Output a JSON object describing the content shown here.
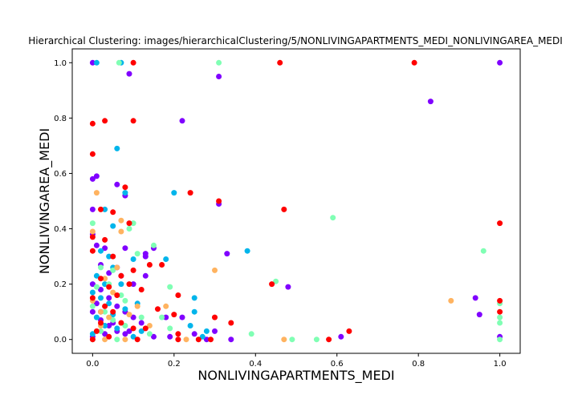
{
  "chart_data": {
    "type": "scatter",
    "title": "Hierarchical Clustering: images/hierarchicalClustering/5/NONLIVINGAPARTMENTS_MEDI_NONLIVINGAREA_MEDI",
    "xlabel": "NONLIVINGAPARTMENTS_MEDI",
    "ylabel": "NONLIVINGAREA_MEDI",
    "xlim": [
      -0.05,
      1.05
    ],
    "ylim": [
      -0.05,
      1.05
    ],
    "xticks": [
      "0.0",
      "0.2",
      "0.4",
      "0.6",
      "0.8",
      "1.0"
    ],
    "yticks": [
      "0.0",
      "0.2",
      "0.4",
      "0.6",
      "0.8",
      "1.0"
    ],
    "grid": false,
    "legend": "none",
    "cluster_colors": [
      "#8000ff",
      "#00b5eb",
      "#80ffb4",
      "#ffb360",
      "#ff0000"
    ],
    "series": [
      {
        "color": "#8000ff",
        "points": [
          [
            0.0,
            1.0
          ],
          [
            0.09,
            0.96
          ],
          [
            0.31,
            0.95
          ],
          [
            0.83,
            0.86
          ],
          [
            0.22,
            0.79
          ],
          [
            0.0,
            0.58
          ],
          [
            0.01,
            0.59
          ],
          [
            0.06,
            0.56
          ],
          [
            0.08,
            0.52
          ],
          [
            0.0,
            0.47
          ],
          [
            0.31,
            0.49
          ],
          [
            0.33,
            0.31
          ],
          [
            0.0,
            0.38
          ],
          [
            0.01,
            0.34
          ],
          [
            0.03,
            0.33
          ],
          [
            0.08,
            0.33
          ],
          [
            0.13,
            0.31
          ],
          [
            0.15,
            0.33
          ],
          [
            0.13,
            0.3
          ],
          [
            0.02,
            0.27
          ],
          [
            0.04,
            0.24
          ],
          [
            0.07,
            0.23
          ],
          [
            0.1,
            0.2
          ],
          [
            0.13,
            0.23
          ],
          [
            0.06,
            0.26
          ],
          [
            0.0,
            0.2
          ],
          [
            0.02,
            0.18
          ],
          [
            0.04,
            0.15
          ],
          [
            0.06,
            0.12
          ],
          [
            0.08,
            0.1
          ],
          [
            0.1,
            0.08
          ],
          [
            0.12,
            0.06
          ],
          [
            0.02,
            0.07
          ],
          [
            0.04,
            0.05
          ],
          [
            0.06,
            0.03
          ],
          [
            0.08,
            0.02
          ],
          [
            0.0,
            0.1
          ],
          [
            0.01,
            0.13
          ],
          [
            0.03,
            0.02
          ],
          [
            0.05,
            0.06
          ],
          [
            0.18,
            0.08
          ],
          [
            0.22,
            0.08
          ],
          [
            0.25,
            0.02
          ],
          [
            0.28,
            0.0
          ],
          [
            0.3,
            0.03
          ],
          [
            0.34,
            0.0
          ],
          [
            0.48,
            0.19
          ],
          [
            0.94,
            0.15
          ],
          [
            0.95,
            0.09
          ],
          [
            1.0,
            1.0
          ],
          [
            1.0,
            0.01
          ],
          [
            0.61,
            0.01
          ],
          [
            0.19,
            0.01
          ],
          [
            0.15,
            0.01
          ],
          [
            0.09,
            0.03
          ],
          [
            0.0,
            0.01
          ],
          [
            0.02,
            0.1
          ]
        ]
      },
      {
        "color": "#00b5eb",
        "points": [
          [
            0.01,
            1.0
          ],
          [
            0.07,
            1.0
          ],
          [
            0.06,
            0.69
          ],
          [
            0.2,
            0.53
          ],
          [
            0.08,
            0.53
          ],
          [
            0.03,
            0.47
          ],
          [
            0.05,
            0.41
          ],
          [
            0.02,
            0.32
          ],
          [
            0.04,
            0.3
          ],
          [
            0.1,
            0.29
          ],
          [
            0.18,
            0.29
          ],
          [
            0.38,
            0.32
          ],
          [
            0.05,
            0.26
          ],
          [
            0.07,
            0.2
          ],
          [
            0.0,
            0.17
          ],
          [
            0.02,
            0.15
          ],
          [
            0.04,
            0.13
          ],
          [
            0.08,
            0.11
          ],
          [
            0.01,
            0.08
          ],
          [
            0.03,
            0.05
          ],
          [
            0.06,
            0.04
          ],
          [
            0.0,
            0.02
          ],
          [
            0.1,
            0.01
          ],
          [
            0.12,
            0.03
          ],
          [
            0.25,
            0.15
          ],
          [
            0.25,
            0.1
          ],
          [
            0.24,
            0.05
          ],
          [
            0.28,
            0.03
          ],
          [
            0.27,
            0.01
          ],
          [
            0.03,
            0.2
          ],
          [
            0.05,
            0.09
          ],
          [
            0.11,
            0.13
          ],
          [
            0.01,
            0.23
          ]
        ]
      },
      {
        "color": "#80ffb4",
        "points": [
          [
            0.065,
            1.0
          ],
          [
            0.31,
            1.0
          ],
          [
            0.59,
            0.44
          ],
          [
            0.0,
            0.42
          ],
          [
            0.1,
            0.42
          ],
          [
            0.09,
            0.4
          ],
          [
            0.96,
            0.32
          ],
          [
            0.11,
            0.31
          ],
          [
            0.15,
            0.34
          ],
          [
            0.45,
            0.21
          ],
          [
            0.02,
            0.26
          ],
          [
            0.04,
            0.2
          ],
          [
            0.07,
            0.16
          ],
          [
            0.0,
            0.12
          ],
          [
            0.03,
            0.1
          ],
          [
            0.05,
            0.07
          ],
          [
            0.08,
            0.05
          ],
          [
            0.02,
            0.03
          ],
          [
            0.0,
            0.0
          ],
          [
            0.06,
            0.0
          ],
          [
            0.12,
            0.08
          ],
          [
            0.14,
            0.02
          ],
          [
            0.19,
            0.19
          ],
          [
            0.17,
            0.08
          ],
          [
            0.19,
            0.04
          ],
          [
            0.39,
            0.02
          ],
          [
            0.49,
            0.0
          ],
          [
            0.55,
            0.0
          ],
          [
            1.0,
            0.13
          ],
          [
            1.0,
            0.08
          ],
          [
            1.0,
            0.06
          ],
          [
            1.0,
            0.0
          ],
          [
            0.05,
            0.25
          ],
          [
            0.08,
            0.14
          ],
          [
            0.01,
            0.19
          ]
        ]
      },
      {
        "color": "#ffb360",
        "points": [
          [
            0.01,
            0.53
          ],
          [
            0.07,
            0.43
          ],
          [
            0.07,
            0.39
          ],
          [
            0.0,
            0.39
          ],
          [
            0.06,
            0.26
          ],
          [
            0.03,
            0.22
          ],
          [
            0.05,
            0.17
          ],
          [
            0.0,
            0.14
          ],
          [
            0.02,
            0.1
          ],
          [
            0.04,
            0.08
          ],
          [
            0.11,
            0.12
          ],
          [
            0.14,
            0.05
          ],
          [
            0.18,
            0.12
          ],
          [
            0.03,
            0.0
          ],
          [
            0.08,
            0.0
          ],
          [
            0.23,
            0.0
          ],
          [
            0.3,
            0.25
          ],
          [
            0.47,
            0.0
          ],
          [
            0.88,
            0.14
          ],
          [
            0.09,
            0.09
          ],
          [
            0.02,
            0.05
          ]
        ]
      },
      {
        "color": "#ff0000",
        "points": [
          [
            0.1,
            1.0
          ],
          [
            0.46,
            1.0
          ],
          [
            0.79,
            1.0
          ],
          [
            0.03,
            0.79
          ],
          [
            0.1,
            0.79
          ],
          [
            0.0,
            0.78
          ],
          [
            0.0,
            0.67
          ],
          [
            0.08,
            0.55
          ],
          [
            0.24,
            0.53
          ],
          [
            0.31,
            0.5
          ],
          [
            0.47,
            0.47
          ],
          [
            0.02,
            0.47
          ],
          [
            0.05,
            0.46
          ],
          [
            0.09,
            0.42
          ],
          [
            1.0,
            0.42
          ],
          [
            0.0,
            0.37
          ],
          [
            0.03,
            0.36
          ],
          [
            0.0,
            0.32
          ],
          [
            0.05,
            0.3
          ],
          [
            0.14,
            0.27
          ],
          [
            0.17,
            0.27
          ],
          [
            0.1,
            0.25
          ],
          [
            0.02,
            0.22
          ],
          [
            0.04,
            0.19
          ],
          [
            0.06,
            0.16
          ],
          [
            0.09,
            0.2
          ],
          [
            0.0,
            0.15
          ],
          [
            0.03,
            0.12
          ],
          [
            0.05,
            0.1
          ],
          [
            0.07,
            0.06
          ],
          [
            0.1,
            0.04
          ],
          [
            0.13,
            0.04
          ],
          [
            0.01,
            0.03
          ],
          [
            0.04,
            0.01
          ],
          [
            0.0,
            0.0
          ],
          [
            0.11,
            0.0
          ],
          [
            0.16,
            0.11
          ],
          [
            0.21,
            0.16
          ],
          [
            0.2,
            0.09
          ],
          [
            0.21,
            0.02
          ],
          [
            0.21,
            0.0
          ],
          [
            0.26,
            0.0
          ],
          [
            0.29,
            0.0
          ],
          [
            0.3,
            0.08
          ],
          [
            0.34,
            0.06
          ],
          [
            0.44,
            0.2
          ],
          [
            0.58,
            0.0
          ],
          [
            0.63,
            0.03
          ],
          [
            1.0,
            0.14
          ],
          [
            1.0,
            0.1
          ],
          [
            0.07,
            0.23
          ],
          [
            0.12,
            0.18
          ],
          [
            0.02,
            0.06
          ]
        ]
      }
    ]
  }
}
